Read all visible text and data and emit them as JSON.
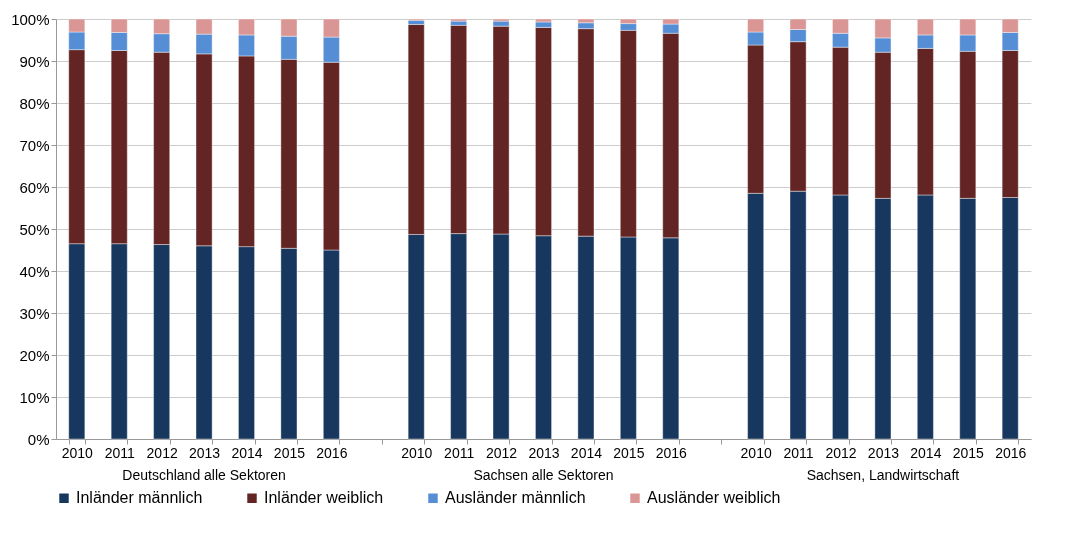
{
  "chart_data": {
    "type": "bar",
    "stacked": true,
    "grid": "y",
    "legend": "bottom",
    "categories": [
      "2010",
      "2011",
      "2012",
      "2013",
      "2014",
      "2015",
      "2016",
      null,
      "2010",
      "2011",
      "2012",
      "2013",
      "2014",
      "2015",
      "2016",
      null,
      "2010",
      "2011",
      "2012",
      "2013",
      "2014",
      "2015",
      "2016"
    ],
    "annotations": [
      "Deutschland alle Sektoren",
      "Sachsen alle Sektoren",
      "Sachsen, Landwirtschaft"
    ],
    "ylim": [
      0,
      100
    ],
    "yticks": [
      {
        "value": 0,
        "label": "0%"
      },
      {
        "value": 10,
        "label": "10%"
      },
      {
        "value": 20,
        "label": "20%"
      },
      {
        "value": 30,
        "label": "30%"
      },
      {
        "value": 40,
        "label": "40%"
      },
      {
        "value": 50,
        "label": "50%"
      },
      {
        "value": 60,
        "label": "60%"
      },
      {
        "value": 70,
        "label": "70%"
      },
      {
        "value": 80,
        "label": "80%"
      },
      {
        "value": 90,
        "label": "90%"
      },
      {
        "value": 100,
        "label": "100%"
      }
    ],
    "series": [
      {
        "name": "Inländer männlich",
        "color": "#17375e",
        "values": [
          46.5,
          46.5,
          46.3,
          46.0,
          45.8,
          45.4,
          45.0,
          null,
          48.7,
          48.9,
          48.8,
          48.4,
          48.3,
          48.1,
          47.9,
          null,
          58.5,
          59.0,
          58.1,
          57.3,
          58.1,
          57.3,
          57.5
        ]
      },
      {
        "name": "Inländer weiblich",
        "color": "#632523",
        "values": [
          46.2,
          46.0,
          45.8,
          45.7,
          45.4,
          45.0,
          44.7,
          null,
          50.0,
          49.6,
          49.5,
          49.6,
          49.4,
          49.2,
          48.7,
          null,
          35.3,
          35.6,
          35.2,
          34.8,
          34.9,
          35.0,
          35.0
        ]
      },
      {
        "name": "Ausländer männlich",
        "color": "#558ed5",
        "values": [
          4.2,
          4.3,
          4.4,
          4.7,
          5.0,
          5.5,
          6.0,
          null,
          1.0,
          1.0,
          1.2,
          1.3,
          1.4,
          1.6,
          2.2,
          null,
          3.1,
          2.9,
          3.3,
          3.4,
          3.2,
          3.9,
          4.3
        ]
      },
      {
        "name": "Ausländer weiblich",
        "color": "#d99694",
        "values": [
          3.1,
          3.2,
          3.5,
          3.6,
          3.8,
          4.1,
          4.3,
          null,
          0.3,
          0.5,
          0.5,
          0.7,
          0.9,
          1.1,
          1.2,
          null,
          3.1,
          2.5,
          3.4,
          4.5,
          3.8,
          3.8,
          3.2
        ]
      }
    ]
  }
}
